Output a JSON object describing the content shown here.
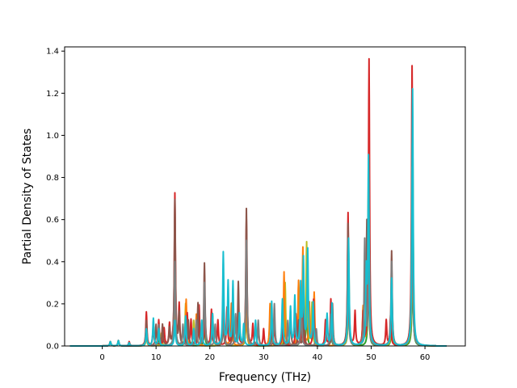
{
  "chart_data": {
    "type": "line",
    "title": "",
    "xlabel": "Frequency (THz)",
    "ylabel": "Partial Density of States",
    "xlim": [
      -7,
      67.5
    ],
    "ylim": [
      0,
      1.42
    ],
    "xticks": [
      0,
      10,
      20,
      30,
      40,
      50,
      60
    ],
    "yticks": [
      0.0,
      0.2,
      0.4,
      0.6,
      0.8,
      1.0,
      1.2,
      1.4
    ],
    "grid": false,
    "legend": "none",
    "baseline_x_range": [
      -6,
      64
    ],
    "series": [
      {
        "color": "#2ca02c",
        "peaks": [
          [
            1.5,
            0.02
          ],
          [
            3,
            0.025
          ],
          [
            8.2,
            0.06
          ],
          [
            10.5,
            0.05
          ],
          [
            13.5,
            0.2
          ],
          [
            15.5,
            0.1
          ],
          [
            19,
            0.12
          ],
          [
            22.5,
            0.15
          ],
          [
            26.8,
            0.2
          ],
          [
            31.5,
            0.1
          ],
          [
            34,
            0.12
          ],
          [
            37,
            0.15
          ],
          [
            38,
            0.2
          ],
          [
            42.5,
            0.1
          ],
          [
            45.8,
            0.3
          ],
          [
            49.5,
            0.4
          ],
          [
            53.8,
            0.12
          ],
          [
            57.7,
            0.5
          ]
        ]
      },
      {
        "color": "#bcbd22",
        "peaks": [
          [
            1.5,
            0.02
          ],
          [
            3,
            0.025
          ],
          [
            8.2,
            0.05
          ],
          [
            11,
            0.06
          ],
          [
            13.5,
            0.25
          ],
          [
            15.5,
            0.2
          ],
          [
            17,
            0.12
          ],
          [
            22.5,
            0.2
          ],
          [
            26.8,
            0.25
          ],
          [
            34,
            0.3
          ],
          [
            36.5,
            0.3
          ],
          [
            38,
            0.49
          ],
          [
            39,
            0.2
          ],
          [
            45.8,
            0.35
          ],
          [
            48.5,
            0.18
          ],
          [
            49.5,
            0.75
          ],
          [
            53.8,
            0.2
          ],
          [
            57.7,
            0.9
          ]
        ]
      },
      {
        "color": "#ff7f0e",
        "peaks": [
          [
            1.5,
            0.02
          ],
          [
            3,
            0.025
          ],
          [
            8.2,
            0.1
          ],
          [
            10.5,
            0.1
          ],
          [
            13.5,
            0.3
          ],
          [
            15.6,
            0.22
          ],
          [
            17.5,
            0.15
          ],
          [
            20.5,
            0.14
          ],
          [
            22.5,
            0.3
          ],
          [
            24,
            0.2
          ],
          [
            26.8,
            0.3
          ],
          [
            31.2,
            0.2
          ],
          [
            33.8,
            0.35
          ],
          [
            36.5,
            0.3
          ],
          [
            37.3,
            0.46
          ],
          [
            38.5,
            0.2
          ],
          [
            39.4,
            0.25
          ],
          [
            45.8,
            0.45
          ],
          [
            48.5,
            0.18
          ],
          [
            49.5,
            0.8
          ],
          [
            53.8,
            0.3
          ],
          [
            57.7,
            1.0
          ]
        ]
      },
      {
        "color": "#d62728",
        "peaks": [
          [
            1.5,
            0.02
          ],
          [
            3,
            0.025
          ],
          [
            5,
            0.02
          ],
          [
            8.2,
            0.16
          ],
          [
            9.5,
            0.1
          ],
          [
            10.5,
            0.12
          ],
          [
            11.5,
            0.08
          ],
          [
            12.5,
            0.1
          ],
          [
            13.5,
            0.72
          ],
          [
            14.3,
            0.19
          ],
          [
            15.8,
            0.15
          ],
          [
            16.5,
            0.12
          ],
          [
            18,
            0.19
          ],
          [
            19.1,
            0.15
          ],
          [
            20.3,
            0.17
          ],
          [
            21.5,
            0.12
          ],
          [
            23.2,
            0.18
          ],
          [
            24.2,
            0.2
          ],
          [
            25.3,
            0.15
          ],
          [
            26.8,
            0.6
          ],
          [
            28,
            0.1
          ],
          [
            30,
            0.08
          ],
          [
            32,
            0.12
          ],
          [
            33.5,
            0.1
          ],
          [
            36,
            0.15
          ],
          [
            37.2,
            0.2
          ],
          [
            39.3,
            0.22
          ],
          [
            41.5,
            0.12
          ],
          [
            42.5,
            0.22
          ],
          [
            45.7,
            0.63
          ],
          [
            47,
            0.16
          ],
          [
            48.5,
            0.15
          ],
          [
            49.6,
            1.36
          ],
          [
            52.8,
            0.12
          ],
          [
            53.6,
            0.14
          ],
          [
            57.6,
            1.33
          ]
        ]
      },
      {
        "color": "#8c564b",
        "peaks": [
          [
            1.5,
            0.02
          ],
          [
            3,
            0.025
          ],
          [
            8.2,
            0.12
          ],
          [
            10,
            0.1
          ],
          [
            11.2,
            0.1
          ],
          [
            12.5,
            0.08
          ],
          [
            13.5,
            0.69
          ],
          [
            14.3,
            0.15
          ],
          [
            16,
            0.12
          ],
          [
            17.8,
            0.2
          ],
          [
            19,
            0.39
          ],
          [
            20.5,
            0.15
          ],
          [
            22.5,
            0.12
          ],
          [
            24.3,
            0.12
          ],
          [
            25.3,
            0.3
          ],
          [
            26.8,
            0.65
          ],
          [
            29,
            0.1
          ],
          [
            31.5,
            0.08
          ],
          [
            35,
            0.15
          ],
          [
            36.5,
            0.12
          ],
          [
            37.5,
            0.15
          ],
          [
            42.8,
            0.2
          ],
          [
            45.7,
            0.58
          ],
          [
            49.2,
            0.55
          ],
          [
            49.6,
            0.6
          ],
          [
            53.8,
            0.45
          ],
          [
            57.6,
            0.96
          ]
        ]
      },
      {
        "color": "#7f7f7f",
        "peaks": [
          [
            1.5,
            0.02
          ],
          [
            3,
            0.025
          ],
          [
            8.2,
            0.08
          ],
          [
            10.5,
            0.1
          ],
          [
            13.5,
            0.4
          ],
          [
            15,
            0.1
          ],
          [
            17.5,
            0.12
          ],
          [
            19,
            0.3
          ],
          [
            21,
            0.1
          ],
          [
            22.5,
            0.2
          ],
          [
            24.8,
            0.15
          ],
          [
            26.8,
            0.5
          ],
          [
            29,
            0.12
          ],
          [
            32,
            0.2
          ],
          [
            34.5,
            0.12
          ],
          [
            37,
            0.2
          ],
          [
            39.8,
            0.08
          ],
          [
            42.5,
            0.15
          ],
          [
            45.7,
            0.4
          ],
          [
            48.8,
            0.5
          ],
          [
            49.5,
            0.4
          ],
          [
            53.8,
            0.4
          ],
          [
            57.6,
            0.85
          ]
        ]
      },
      {
        "color": "#17becf",
        "peaks": [
          [
            1.5,
            0.02
          ],
          [
            3,
            0.025
          ],
          [
            5,
            0.015
          ],
          [
            8.2,
            0.08
          ],
          [
            9.5,
            0.13
          ],
          [
            10.5,
            0.08
          ],
          [
            13.5,
            0.12
          ],
          [
            15.5,
            0.14
          ],
          [
            17,
            0.08
          ],
          [
            18.5,
            0.12
          ],
          [
            20.5,
            0.15
          ],
          [
            22.5,
            0.44
          ],
          [
            23.4,
            0.3
          ],
          [
            24.3,
            0.3
          ],
          [
            25.5,
            0.15
          ],
          [
            26.3,
            0.1
          ],
          [
            28.5,
            0.12
          ],
          [
            31.5,
            0.21
          ],
          [
            33.5,
            0.22
          ],
          [
            35,
            0.18
          ],
          [
            35.8,
            0.23
          ],
          [
            36.9,
            0.28
          ],
          [
            37.4,
            0.4
          ],
          [
            38.2,
            0.45
          ],
          [
            39.2,
            0.2
          ],
          [
            41.8,
            0.15
          ],
          [
            42.7,
            0.2
          ],
          [
            45.8,
            0.51
          ],
          [
            49.1,
            0.33
          ],
          [
            49.5,
            0.88
          ],
          [
            53.8,
            0.32
          ],
          [
            57.7,
            1.22
          ]
        ]
      }
    ]
  }
}
